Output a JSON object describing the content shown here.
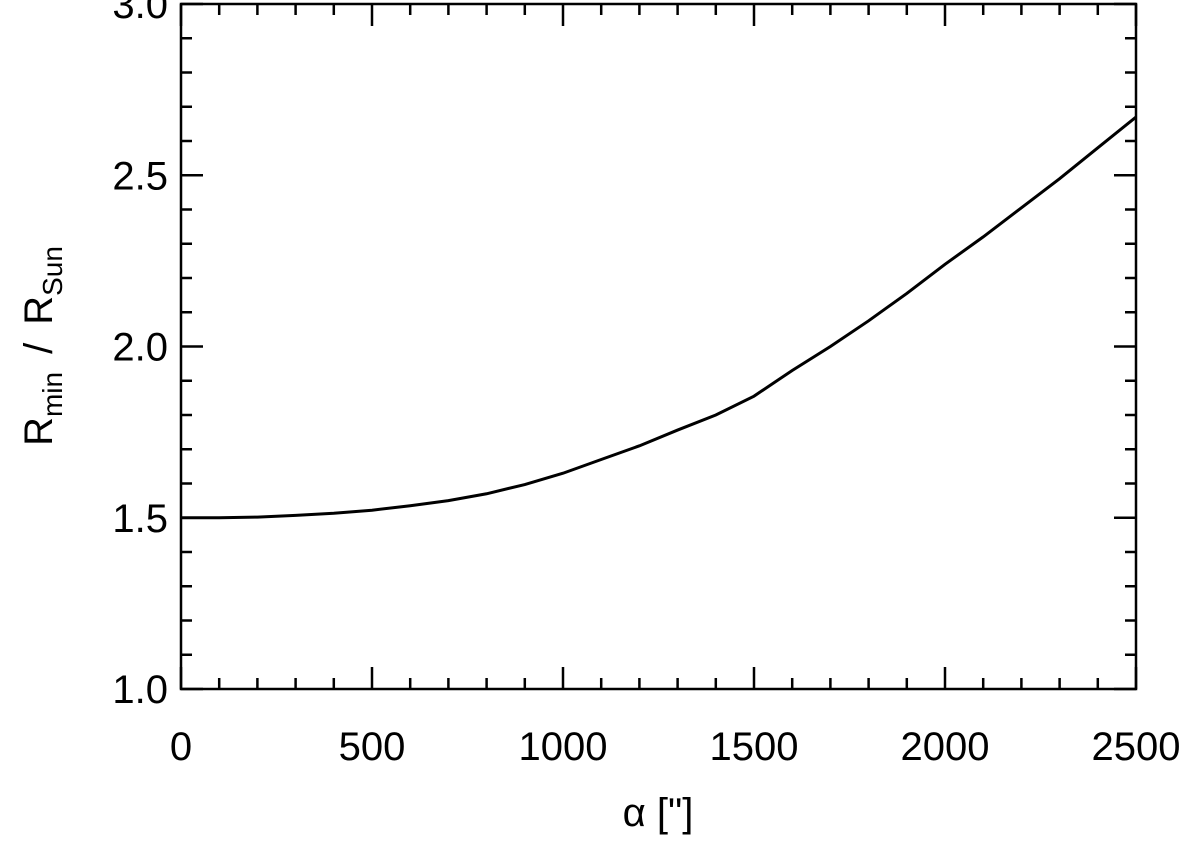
{
  "chart_data": {
    "type": "line",
    "xlabel": "α  [\"]",
    "ylabel": {
      "main": "R",
      "main_sub": "min",
      "separator": "/",
      "ref": "R",
      "ref_sub": "Sun"
    },
    "x": [
      0,
      100,
      200,
      300,
      400,
      500,
      600,
      700,
      800,
      900,
      1000,
      1100,
      1200,
      1300,
      1400,
      1500,
      1600,
      1700,
      1800,
      1900,
      2000,
      2100,
      2200,
      2300,
      2400,
      2500
    ],
    "series": [
      {
        "color": "#000000",
        "values": [
          1.5,
          1.5,
          1.502,
          1.507,
          1.513,
          1.522,
          1.535,
          1.55,
          1.57,
          1.597,
          1.63,
          1.67,
          1.71,
          1.756,
          1.8,
          1.855,
          1.93,
          2.0,
          2.075,
          2.155,
          2.24,
          2.32,
          2.405,
          2.49,
          2.58,
          2.67
        ]
      }
    ],
    "xlim": [
      0,
      2500
    ],
    "xticks": [
      0,
      500,
      1000,
      1500,
      2000,
      2500
    ],
    "ylim": [
      1,
      3
    ],
    "yticks": [
      {
        "value": 1,
        "label": "1.0"
      },
      {
        "value": 1.5,
        "label": "1.5"
      },
      {
        "value": 2,
        "label": "2.0"
      },
      {
        "value": 2.5,
        "label": "2.5"
      },
      {
        "value": 3,
        "label": "3.0"
      }
    ],
    "grid": false
  }
}
